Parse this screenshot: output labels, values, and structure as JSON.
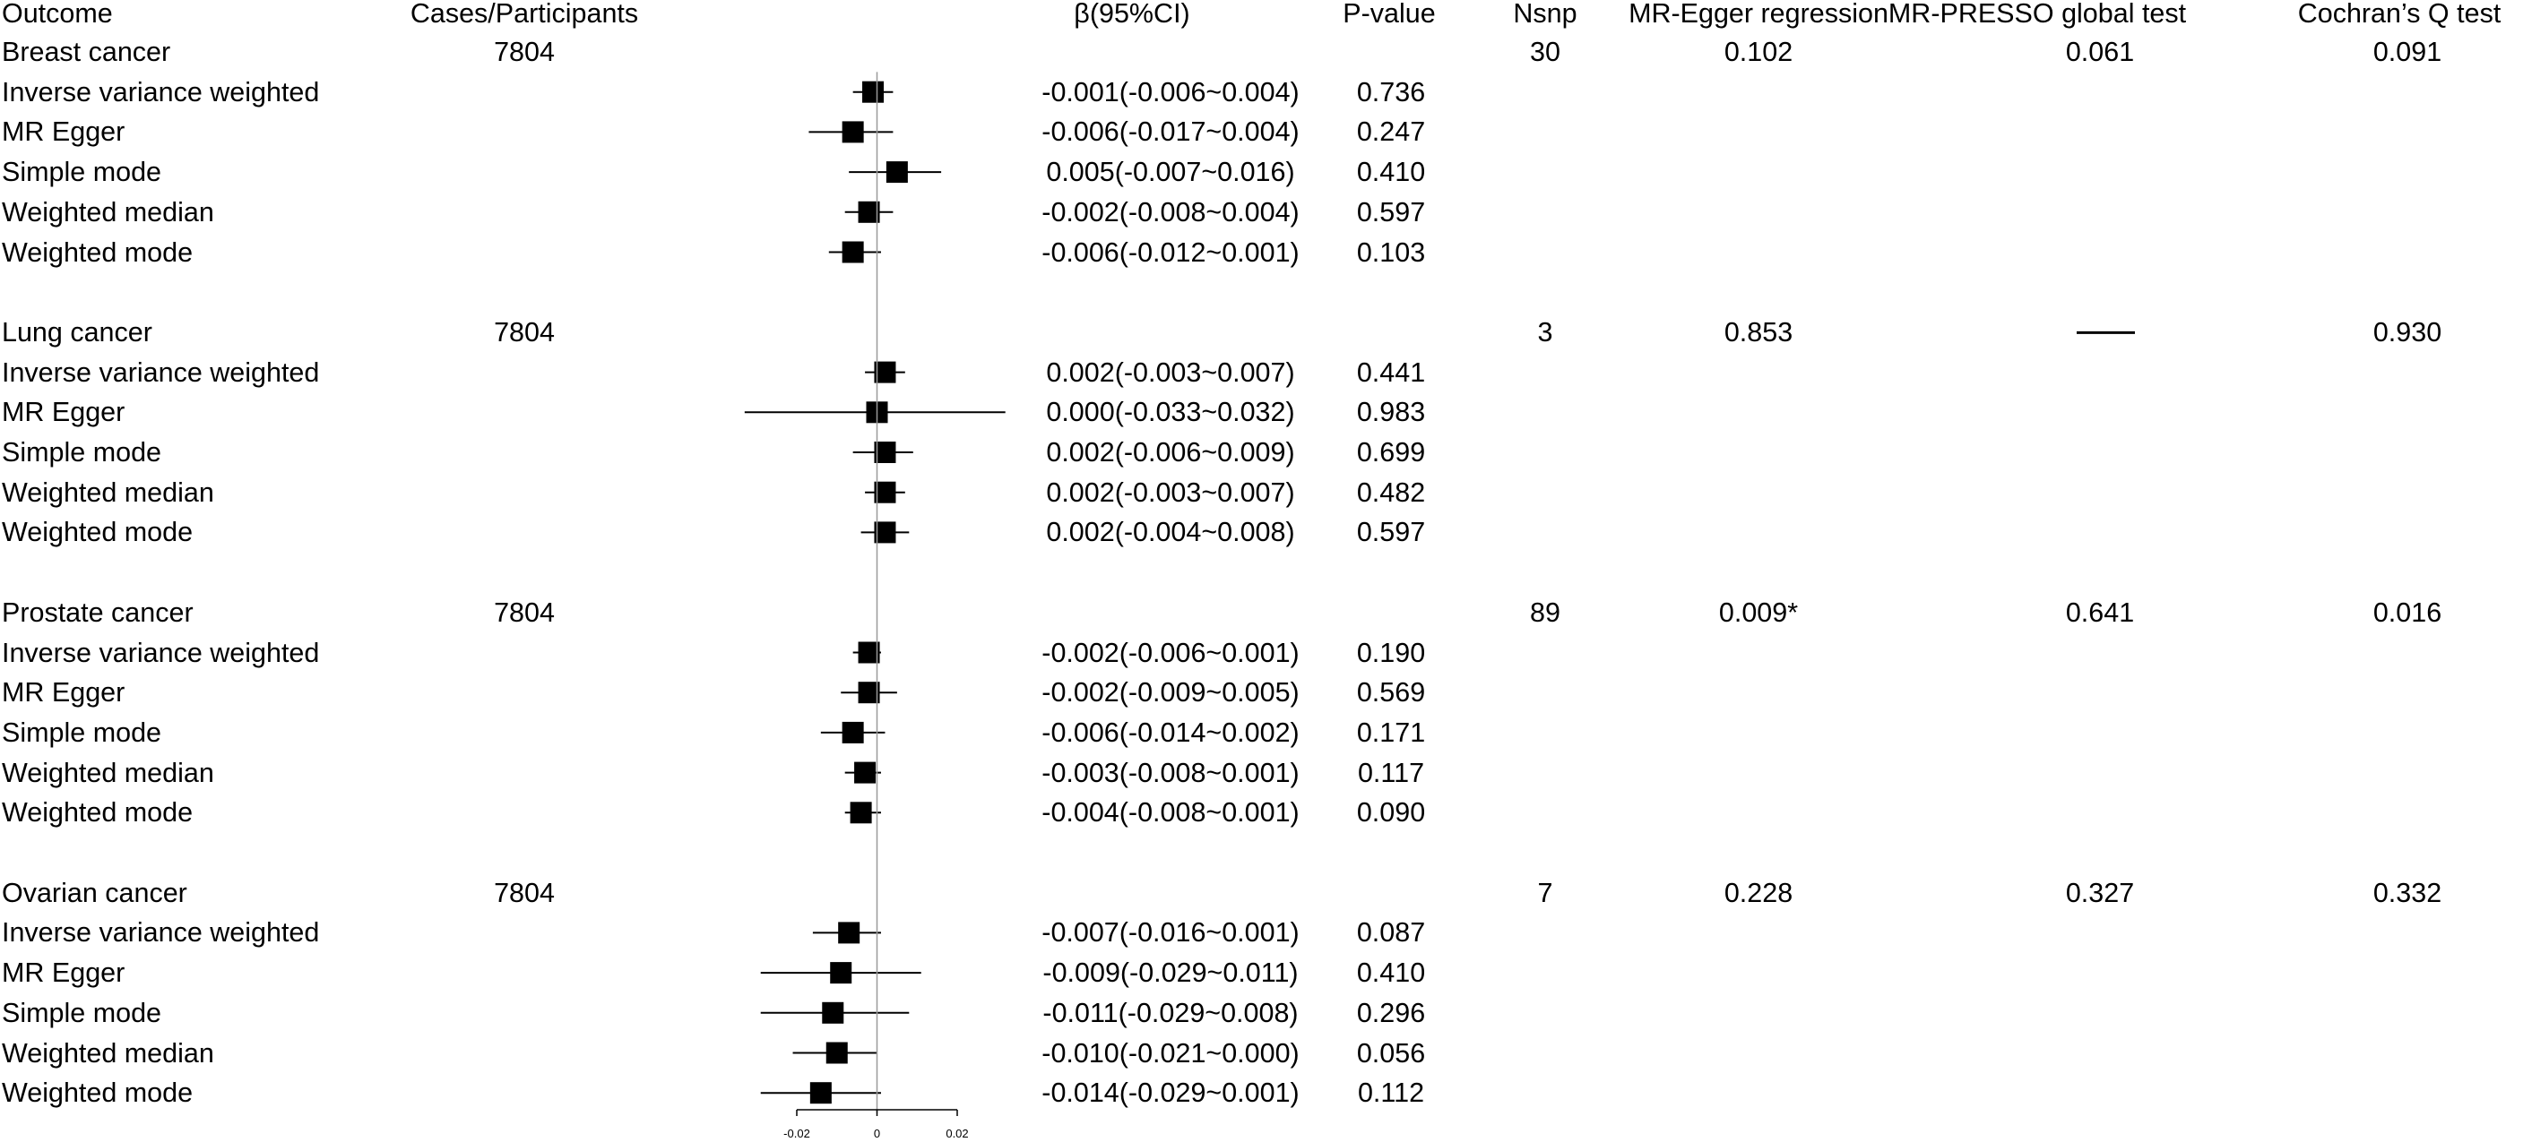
{
  "headers": {
    "outcome": "Outcome",
    "cases": "Cases/Participants",
    "beta": "β(95%CI)",
    "pvalue": "P-value",
    "nsnp": "Nsnp",
    "egger": "MR-Egger regression",
    "presso": "MR-PRESSO global test",
    "cochran": "Cochran’s Q test"
  },
  "groups": [
    {
      "outcome": "Breast cancer",
      "cases": "7804",
      "nsnp": "30",
      "egger": "0.102",
      "presso": "0.061",
      "cochran": "0.091",
      "rows": [
        {
          "method": "Inverse variance weighted",
          "beta": -0.001,
          "lo": -0.006,
          "hi": 0.004,
          "ci_text": "-0.001(-0.006~0.004)",
          "p": "0.736"
        },
        {
          "method": "MR Egger",
          "beta": -0.006,
          "lo": -0.017,
          "hi": 0.004,
          "ci_text": "-0.006(-0.017~0.004)",
          "p": "0.247"
        },
        {
          "method": "Simple mode",
          "beta": 0.005,
          "lo": -0.007,
          "hi": 0.016,
          "ci_text": "0.005(-0.007~0.016)",
          "p": "0.410"
        },
        {
          "method": "Weighted median",
          "beta": -0.002,
          "lo": -0.008,
          "hi": 0.004,
          "ci_text": "-0.002(-0.008~0.004)",
          "p": "0.597"
        },
        {
          "method": "Weighted mode",
          "beta": -0.006,
          "lo": -0.012,
          "hi": 0.001,
          "ci_text": "-0.006(-0.012~0.001)",
          "p": "0.103"
        }
      ]
    },
    {
      "outcome": "Lung cancer",
      "cases": "7804",
      "nsnp": "3",
      "egger": "0.853",
      "presso": "",
      "presso_dash": true,
      "cochran": "0.930",
      "rows": [
        {
          "method": "Inverse variance weighted",
          "beta": 0.002,
          "lo": -0.003,
          "hi": 0.007,
          "ci_text": "0.002(-0.003~0.007)",
          "p": "0.441"
        },
        {
          "method": "MR Egger",
          "beta": 0.0,
          "lo": -0.033,
          "hi": 0.032,
          "ci_text": "0.000(-0.033~0.032)",
          "p": "0.983"
        },
        {
          "method": "Simple mode",
          "beta": 0.002,
          "lo": -0.006,
          "hi": 0.009,
          "ci_text": "0.002(-0.006~0.009)",
          "p": "0.699"
        },
        {
          "method": "Weighted median",
          "beta": 0.002,
          "lo": -0.003,
          "hi": 0.007,
          "ci_text": "0.002(-0.003~0.007)",
          "p": "0.482"
        },
        {
          "method": "Weighted mode",
          "beta": 0.002,
          "lo": -0.004,
          "hi": 0.008,
          "ci_text": "0.002(-0.004~0.008)",
          "p": "0.597"
        }
      ]
    },
    {
      "outcome": "Prostate cancer",
      "cases": "7804",
      "nsnp": "89",
      "egger": "0.009*",
      "presso": "0.641",
      "cochran": "0.016",
      "rows": [
        {
          "method": "Inverse variance weighted",
          "beta": -0.002,
          "lo": -0.006,
          "hi": 0.001,
          "ci_text": "-0.002(-0.006~0.001)",
          "p": "0.190"
        },
        {
          "method": "MR Egger",
          "beta": -0.002,
          "lo": -0.009,
          "hi": 0.005,
          "ci_text": "-0.002(-0.009~0.005)",
          "p": "0.569"
        },
        {
          "method": "Simple mode",
          "beta": -0.006,
          "lo": -0.014,
          "hi": 0.002,
          "ci_text": "-0.006(-0.014~0.002)",
          "p": "0.171"
        },
        {
          "method": "Weighted median",
          "beta": -0.003,
          "lo": -0.008,
          "hi": 0.001,
          "ci_text": "-0.003(-0.008~0.001)",
          "p": "0.117"
        },
        {
          "method": "Weighted mode",
          "beta": -0.004,
          "lo": -0.008,
          "hi": 0.001,
          "ci_text": "-0.004(-0.008~0.001)",
          "p": "0.090"
        }
      ]
    },
    {
      "outcome": "Ovarian cancer",
      "cases": "7804",
      "nsnp": "7",
      "egger": "0.228",
      "presso": "0.327",
      "cochran": "0.332",
      "rows": [
        {
          "method": "Inverse variance weighted",
          "beta": -0.007,
          "lo": -0.016,
          "hi": 0.001,
          "ci_text": "-0.007(-0.016~0.001)",
          "p": "0.087"
        },
        {
          "method": "MR Egger",
          "beta": -0.009,
          "lo": -0.029,
          "hi": 0.011,
          "ci_text": "-0.009(-0.029~0.011)",
          "p": "0.410"
        },
        {
          "method": "Simple mode",
          "beta": -0.011,
          "lo": -0.029,
          "hi": 0.008,
          "ci_text": "-0.011(-0.029~0.008)",
          "p": "0.296"
        },
        {
          "method": "Weighted median",
          "beta": -0.01,
          "lo": -0.021,
          "hi": 0.0,
          "ci_text": "-0.010(-0.021~0.000)",
          "p": "0.056"
        },
        {
          "method": "Weighted mode",
          "beta": -0.014,
          "lo": -0.029,
          "hi": 0.001,
          "ci_text": "-0.014(-0.029~0.001)",
          "p": "0.112"
        }
      ]
    }
  ],
  "chart_data": {
    "type": "forest",
    "xlim": [
      -0.02,
      0.02
    ],
    "ticks": [
      -0.02,
      0,
      0.02
    ],
    "tick_labels": [
      "-0.02",
      "0",
      "0.02"
    ],
    "reference_line": 0,
    "marker": "square",
    "color": "#000000"
  }
}
